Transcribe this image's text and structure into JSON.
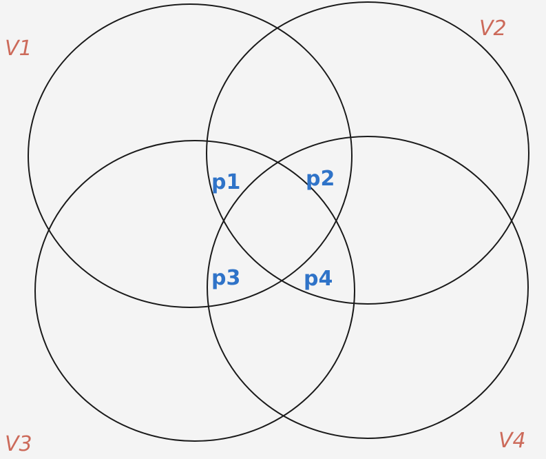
{
  "diagram": {
    "type": "venn",
    "sets": [
      {
        "id": "v1",
        "label": "V1"
      },
      {
        "id": "v2",
        "label": "V2"
      },
      {
        "id": "v3",
        "label": "V3"
      },
      {
        "id": "v4",
        "label": "V4"
      }
    ],
    "regions": [
      {
        "id": "p1",
        "label": "p1"
      },
      {
        "id": "p2",
        "label": "p2"
      },
      {
        "id": "p3",
        "label": "p3"
      },
      {
        "id": "p4",
        "label": "p4"
      }
    ],
    "colors": {
      "background": "#f4f4f4",
      "stroke": "#1a1a1a",
      "set_label": "#cc6a5a",
      "region_label": "#2f73c8"
    }
  }
}
